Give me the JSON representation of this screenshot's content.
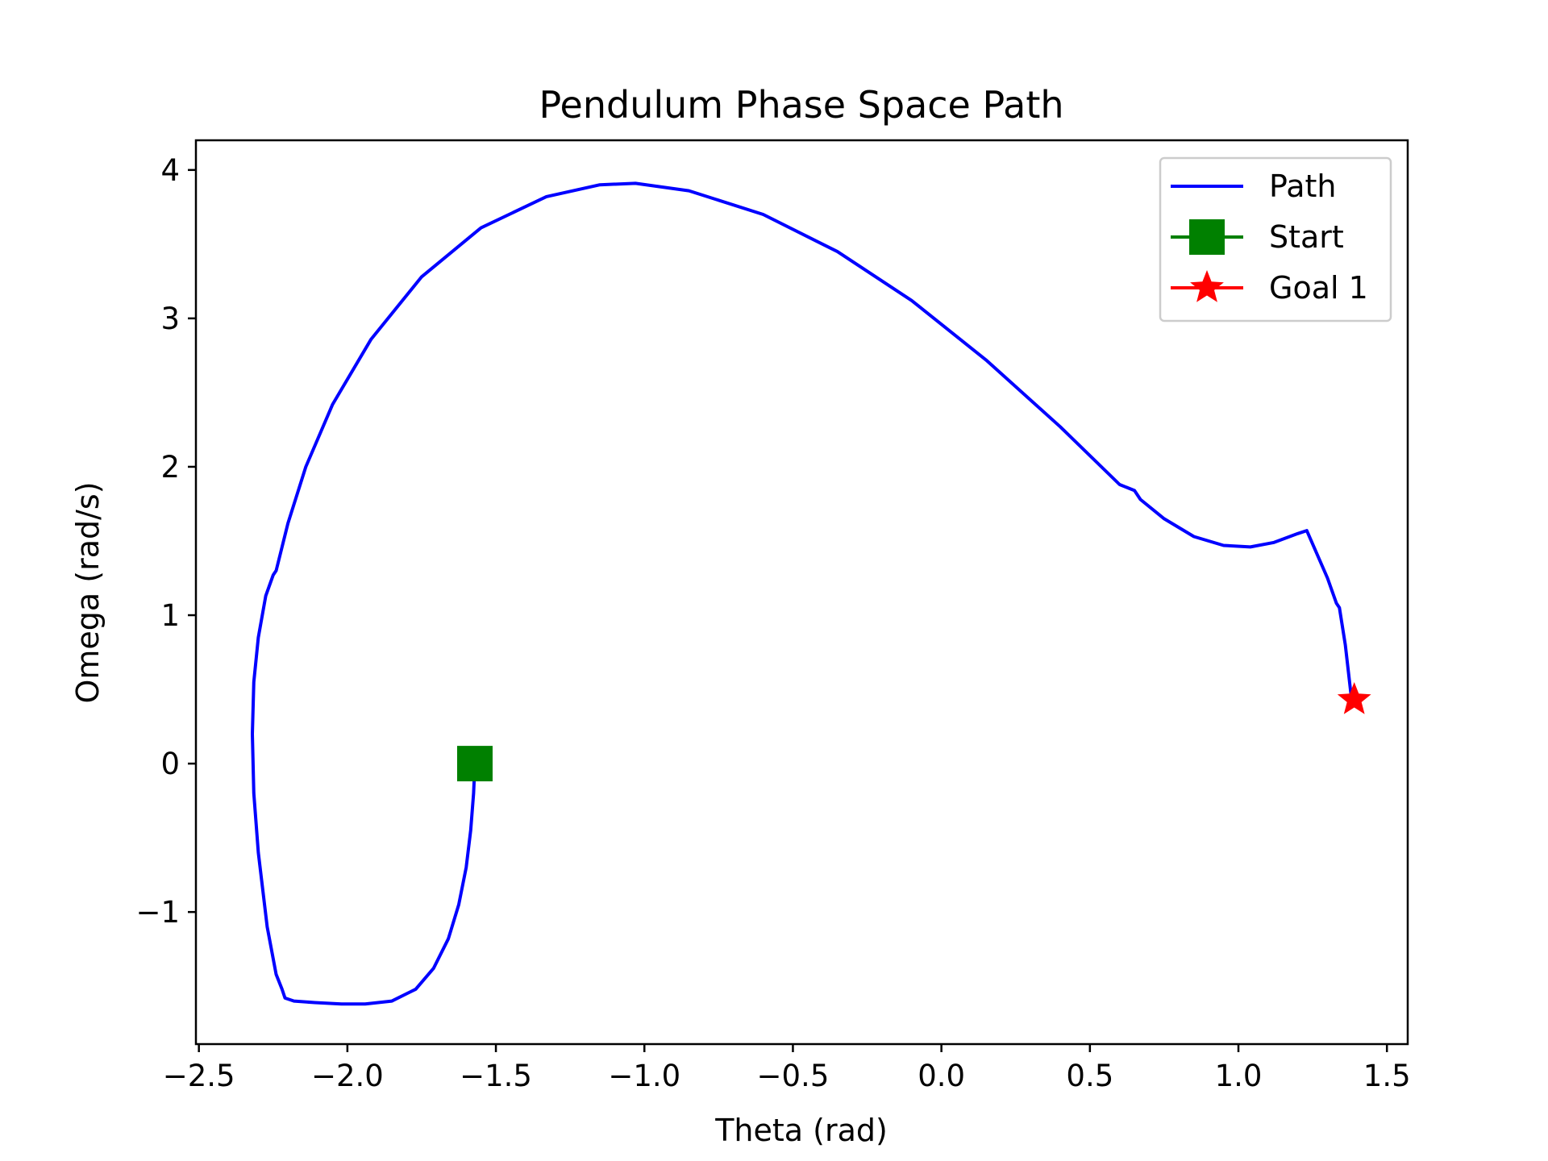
{
  "chart_data": {
    "type": "line",
    "title": "Pendulum Phase Space Path",
    "xlabel": "Theta (rad)",
    "ylabel": "Omega (rad/s)",
    "xlim": [
      -2.51,
      1.57
    ],
    "ylim": [
      -1.89,
      4.2
    ],
    "xticks": [
      -2.5,
      -2.0,
      -1.5,
      -1.0,
      -0.5,
      0.0,
      0.5,
      1.0,
      1.5
    ],
    "xtick_labels": [
      "−2.5",
      "−2.0",
      "−1.5",
      "−1.0",
      "−0.5",
      "0.0",
      "0.5",
      "1.0",
      "1.5"
    ],
    "yticks": [
      -1,
      0,
      1,
      2,
      3,
      4
    ],
    "ytick_labels": [
      "−1",
      "0",
      "1",
      "2",
      "3",
      "4"
    ],
    "grid": false,
    "legend_position": "top-right",
    "series": [
      {
        "name": "Path",
        "color": "#0000ff",
        "marker": "none",
        "x": [
          -1.5708,
          -1.575,
          -1.585,
          -1.6,
          -1.625,
          -1.66,
          -1.71,
          -1.77,
          -1.85,
          -1.94,
          -2.02,
          -2.11,
          -2.18,
          -2.21,
          -2.22,
          -2.24,
          -2.27,
          -2.3,
          -2.315,
          -2.32,
          -2.315,
          -2.3,
          -2.275,
          -2.25,
          -2.24,
          -2.2,
          -2.14,
          -2.05,
          -1.92,
          -1.75,
          -1.55,
          -1.33,
          -1.15,
          -1.03,
          -0.85,
          -0.6,
          -0.35,
          -0.1,
          0.15,
          0.4,
          0.6,
          0.65,
          0.67,
          0.75,
          0.85,
          0.95,
          1.04,
          1.12,
          1.2,
          1.23,
          1.3,
          1.33,
          1.34,
          1.36,
          1.38
        ],
        "y": [
          0.0,
          -0.2,
          -0.45,
          -0.7,
          -0.95,
          -1.18,
          -1.38,
          -1.52,
          -1.6,
          -1.62,
          -1.62,
          -1.61,
          -1.6,
          -1.58,
          -1.52,
          -1.42,
          -1.1,
          -0.6,
          -0.2,
          0.2,
          0.55,
          0.85,
          1.13,
          1.27,
          1.3,
          1.62,
          2.0,
          2.42,
          2.86,
          3.28,
          3.61,
          3.82,
          3.9,
          3.91,
          3.86,
          3.7,
          3.45,
          3.12,
          2.72,
          2.27,
          1.88,
          1.84,
          1.78,
          1.65,
          1.53,
          1.47,
          1.46,
          1.49,
          1.55,
          1.57,
          1.25,
          1.08,
          1.05,
          0.8,
          0.45
        ]
      },
      {
        "name": "Start",
        "color": "#008000",
        "marker": "square",
        "x": [
          -1.5708
        ],
        "y": [
          0.0
        ]
      },
      {
        "name": "Goal 1",
        "color": "#ff0000",
        "marker": "star",
        "x": [
          1.39
        ],
        "y": [
          0.43
        ]
      }
    ]
  }
}
